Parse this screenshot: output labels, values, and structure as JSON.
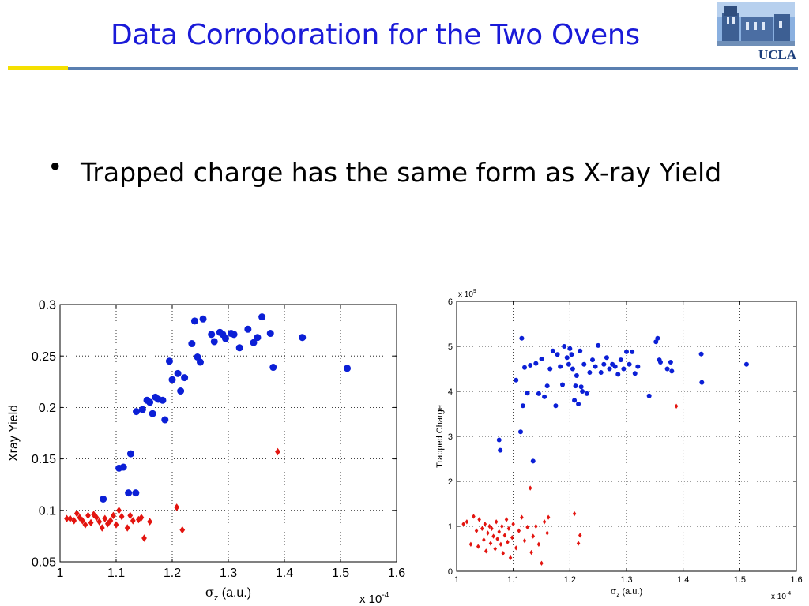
{
  "slide": {
    "title": "Data Corroboration for the Two Ovens",
    "logo_text": "UCLA",
    "bullet_symbol": "•",
    "bullet": "Trapped charge has the same form as X-ray Yield"
  },
  "colors": {
    "title": "#1a1ad8",
    "blue_series": "#0b1fd6",
    "red_series": "#e3140f",
    "rule_yellow": "#f5e000",
    "rule_blue": "#5a7fb0"
  },
  "chart_data": [
    {
      "type": "scatter",
      "title": "",
      "xlabel": "σz (a.u.)",
      "ylabel": "Xray Yield",
      "x_multiplier": "x 10-4",
      "xlim": [
        1.0,
        1.6
      ],
      "ylim": [
        0.05,
        0.3
      ],
      "xticks": [
        "1",
        "1.1",
        "1.2",
        "1.3",
        "1.4",
        "1.5",
        "1.6"
      ],
      "yticks": [
        "0.05",
        "0.1",
        "0.15",
        "0.2",
        "0.25",
        "0.3"
      ],
      "grid": true,
      "series": [
        {
          "marker": "circle",
          "color": "#0b1fd6",
          "x": [
            1.077,
            1.105,
            1.113,
            1.122,
            1.126,
            1.135,
            1.136,
            1.147,
            1.155,
            1.16,
            1.165,
            1.17,
            1.175,
            1.183,
            1.187,
            1.195,
            1.2,
            1.21,
            1.215,
            1.222,
            1.235,
            1.24,
            1.245,
            1.25,
            1.255,
            1.27,
            1.275,
            1.285,
            1.29,
            1.295,
            1.305,
            1.31,
            1.32,
            1.335,
            1.345,
            1.352,
            1.36,
            1.375,
            1.38,
            1.432,
            1.512
          ],
          "y": [
            0.111,
            0.141,
            0.142,
            0.117,
            0.155,
            0.117,
            0.196,
            0.198,
            0.207,
            0.205,
            0.194,
            0.21,
            0.208,
            0.207,
            0.188,
            0.245,
            0.227,
            0.233,
            0.216,
            0.229,
            0.262,
            0.284,
            0.249,
            0.244,
            0.286,
            0.271,
            0.264,
            0.273,
            0.271,
            0.267,
            0.272,
            0.271,
            0.258,
            0.276,
            0.263,
            0.268,
            0.288,
            0.272,
            0.239,
            0.268,
            0.238
          ]
        },
        {
          "marker": "diamond",
          "color": "#e3140f",
          "x": [
            1.012,
            1.018,
            1.025,
            1.03,
            1.035,
            1.04,
            1.045,
            1.05,
            1.055,
            1.06,
            1.065,
            1.07,
            1.075,
            1.08,
            1.085,
            1.09,
            1.095,
            1.1,
            1.105,
            1.11,
            1.12,
            1.125,
            1.13,
            1.14,
            1.145,
            1.15,
            1.16,
            1.208,
            1.218,
            1.388
          ],
          "y": [
            0.092,
            0.092,
            0.09,
            0.097,
            0.093,
            0.09,
            0.086,
            0.095,
            0.088,
            0.096,
            0.093,
            0.089,
            0.083,
            0.092,
            0.087,
            0.09,
            0.095,
            0.086,
            0.1,
            0.094,
            0.083,
            0.095,
            0.09,
            0.091,
            0.093,
            0.073,
            0.089,
            0.103,
            0.081,
            0.157
          ]
        }
      ]
    },
    {
      "type": "scatter",
      "title": "",
      "xlabel": "σz (a.u.)",
      "ylabel": "Trapped Charge",
      "x_multiplier": "x 10-4",
      "y_multiplier": "x 109",
      "xlim": [
        1.0,
        1.6
      ],
      "ylim": [
        0,
        6
      ],
      "xticks": [
        "1",
        "1.1",
        "1.2",
        "1.3",
        "1.4",
        "1.5",
        "1.6"
      ],
      "yticks": [
        "0",
        "1",
        "2",
        "3",
        "4",
        "5",
        "6"
      ],
      "grid": true,
      "series": [
        {
          "marker": "circle",
          "color": "#0b1fd6",
          "x": [
            1.075,
            1.077,
            1.105,
            1.113,
            1.115,
            1.117,
            1.12,
            1.125,
            1.13,
            1.135,
            1.14,
            1.145,
            1.15,
            1.155,
            1.16,
            1.165,
            1.17,
            1.175,
            1.178,
            1.183,
            1.187,
            1.19,
            1.195,
            1.198,
            1.2,
            1.203,
            1.205,
            1.208,
            1.21,
            1.212,
            1.215,
            1.218,
            1.22,
            1.222,
            1.225,
            1.23,
            1.235,
            1.24,
            1.245,
            1.25,
            1.255,
            1.26,
            1.265,
            1.27,
            1.275,
            1.28,
            1.285,
            1.29,
            1.295,
            1.3,
            1.305,
            1.31,
            1.315,
            1.32,
            1.34,
            1.352,
            1.355,
            1.358,
            1.36,
            1.372,
            1.378,
            1.38,
            1.432,
            1.433,
            1.512
          ],
          "y": [
            2.92,
            2.69,
            4.25,
            3.1,
            5.18,
            3.68,
            4.53,
            3.96,
            4.58,
            2.45,
            4.62,
            3.95,
            4.72,
            3.88,
            4.12,
            4.5,
            4.9,
            3.68,
            4.82,
            4.55,
            4.15,
            5.0,
            4.75,
            4.6,
            4.95,
            4.82,
            4.5,
            3.8,
            4.12,
            4.35,
            3.72,
            4.9,
            4.1,
            4.0,
            4.6,
            3.95,
            4.42,
            4.7,
            4.55,
            5.02,
            4.42,
            4.6,
            4.75,
            4.5,
            4.6,
            4.55,
            4.38,
            4.7,
            4.5,
            4.88,
            4.6,
            4.88,
            4.4,
            4.55,
            3.9,
            5.1,
            5.18,
            4.7,
            4.65,
            4.5,
            4.65,
            4.45,
            4.83,
            4.2,
            4.6
          ]
        },
        {
          "marker": "diamond",
          "color": "#e3140f",
          "x": [
            1.012,
            1.018,
            1.025,
            1.03,
            1.035,
            1.038,
            1.04,
            1.045,
            1.048,
            1.05,
            1.052,
            1.055,
            1.058,
            1.06,
            1.062,
            1.065,
            1.068,
            1.07,
            1.072,
            1.075,
            1.078,
            1.08,
            1.082,
            1.085,
            1.088,
            1.09,
            1.092,
            1.095,
            1.098,
            1.1,
            1.105,
            1.11,
            1.115,
            1.12,
            1.125,
            1.13,
            1.132,
            1.135,
            1.14,
            1.145,
            1.15,
            1.155,
            1.16,
            1.162,
            1.208,
            1.215,
            1.218,
            1.388
          ],
          "y": [
            1.05,
            1.1,
            0.6,
            1.22,
            0.9,
            0.55,
            1.15,
            0.95,
            0.7,
            1.05,
            0.45,
            0.85,
            1.0,
            0.62,
            0.95,
            0.78,
            0.5,
            1.1,
            0.72,
            0.88,
            0.6,
            1.0,
            0.4,
            0.8,
            1.15,
            0.65,
            0.95,
            0.3,
            0.75,
            1.05,
            0.52,
            0.9,
            1.2,
            0.68,
            0.98,
            1.85,
            0.42,
            0.78,
            1.0,
            0.6,
            0.18,
            1.1,
            0.85,
            1.2,
            1.28,
            0.62,
            0.8,
            3.67
          ]
        }
      ]
    }
  ]
}
